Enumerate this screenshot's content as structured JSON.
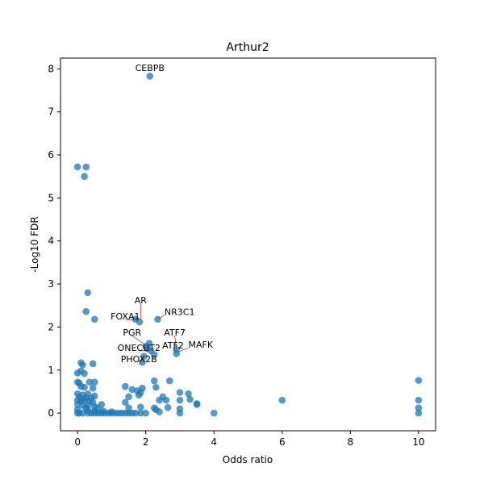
{
  "chart_data": {
    "type": "scatter",
    "title": "Arthur2",
    "xlabel": "Odds ratio",
    "ylabel": "-Log10 FDR",
    "xlim": [
      -0.5,
      10.5
    ],
    "ylim": [
      -0.41,
      8.25
    ],
    "x_ticks": [
      0,
      2,
      4,
      6,
      8,
      10
    ],
    "y_ticks": [
      0,
      1,
      2,
      3,
      4,
      5,
      6,
      7,
      8
    ],
    "x_tick_labels": [
      "0",
      "2",
      "4",
      "6",
      "8",
      "10"
    ],
    "y_tick_labels": [
      "0",
      "1",
      "2",
      "3",
      "4",
      "5",
      "6",
      "7",
      "8"
    ],
    "grid": false,
    "point_color": "#1f77b4",
    "connector_color": "#d62728",
    "points": [
      {
        "x": 2.12,
        "y": 7.83
      },
      {
        "x": 0.0,
        "y": 5.72
      },
      {
        "x": 0.25,
        "y": 5.72
      },
      {
        "x": 0.2,
        "y": 5.5
      },
      {
        "x": 0.3,
        "y": 2.8
      },
      {
        "x": 0.25,
        "y": 2.36
      },
      {
        "x": 0.5,
        "y": 2.18
      },
      {
        "x": 1.7,
        "y": 2.18
      },
      {
        "x": 1.82,
        "y": 2.12
      },
      {
        "x": 2.35,
        "y": 2.18
      },
      {
        "x": 2.1,
        "y": 1.62
      },
      {
        "x": 2.0,
        "y": 1.55
      },
      {
        "x": 2.05,
        "y": 1.5
      },
      {
        "x": 2.15,
        "y": 1.45
      },
      {
        "x": 2.9,
        "y": 1.48
      },
      {
        "x": 2.9,
        "y": 1.38
      },
      {
        "x": 1.95,
        "y": 1.32
      },
      {
        "x": 2.25,
        "y": 1.36
      },
      {
        "x": 1.9,
        "y": 1.18
      },
      {
        "x": 0.1,
        "y": 1.17
      },
      {
        "x": 0.15,
        "y": 1.12
      },
      {
        "x": 0.45,
        "y": 1.15
      },
      {
        "x": 0.0,
        "y": 0.93
      },
      {
        "x": 0.1,
        "y": 0.98
      },
      {
        "x": 0.2,
        "y": 0.92
      },
      {
        "x": 2.25,
        "y": 0.75
      },
      {
        "x": 2.7,
        "y": 0.75
      },
      {
        "x": 10.0,
        "y": 0.76
      },
      {
        "x": 0.0,
        "y": 0.72
      },
      {
        "x": 0.05,
        "y": 0.7
      },
      {
        "x": 0.35,
        "y": 0.72
      },
      {
        "x": 0.5,
        "y": 0.72
      },
      {
        "x": 0.1,
        "y": 0.62
      },
      {
        "x": 0.2,
        "y": 0.6
      },
      {
        "x": 1.4,
        "y": 0.62
      },
      {
        "x": 2.3,
        "y": 0.6
      },
      {
        "x": 0.45,
        "y": 0.58
      },
      {
        "x": 1.6,
        "y": 0.55
      },
      {
        "x": 1.75,
        "y": 0.52
      },
      {
        "x": 1.9,
        "y": 0.58
      },
      {
        "x": 1.85,
        "y": 0.48
      },
      {
        "x": 3.0,
        "y": 0.48
      },
      {
        "x": 3.25,
        "y": 0.45
      },
      {
        "x": 1.8,
        "y": 0.42
      },
      {
        "x": 2.5,
        "y": 0.38
      },
      {
        "x": 1.5,
        "y": 0.38
      },
      {
        "x": 0.0,
        "y": 0.45
      },
      {
        "x": 0.15,
        "y": 0.42
      },
      {
        "x": 0.3,
        "y": 0.45
      },
      {
        "x": 0.5,
        "y": 0.4
      },
      {
        "x": 0.05,
        "y": 0.38
      },
      {
        "x": 0.25,
        "y": 0.35
      },
      {
        "x": 0.4,
        "y": 0.35
      },
      {
        "x": 0.0,
        "y": 0.3
      },
      {
        "x": 0.1,
        "y": 0.28
      },
      {
        "x": 0.2,
        "y": 0.3
      },
      {
        "x": 0.35,
        "y": 0.28
      },
      {
        "x": 0.45,
        "y": 0.25
      },
      {
        "x": 2.4,
        "y": 0.3
      },
      {
        "x": 2.6,
        "y": 0.3
      },
      {
        "x": 3.0,
        "y": 0.3
      },
      {
        "x": 3.3,
        "y": 0.32
      },
      {
        "x": 6.0,
        "y": 0.3
      },
      {
        "x": 10.0,
        "y": 0.3
      },
      {
        "x": 1.4,
        "y": 0.25
      },
      {
        "x": 3.5,
        "y": 0.22
      },
      {
        "x": 3.5,
        "y": 0.2
      },
      {
        "x": 0.0,
        "y": 0.2
      },
      {
        "x": 0.15,
        "y": 0.18
      },
      {
        "x": 0.3,
        "y": 0.18
      },
      {
        "x": 0.5,
        "y": 0.15
      },
      {
        "x": 0.7,
        "y": 0.2
      },
      {
        "x": 0.6,
        "y": 0.12
      },
      {
        "x": 0.25,
        "y": 0.12
      },
      {
        "x": 2.65,
        "y": 0.13
      },
      {
        "x": 2.25,
        "y": 0.12
      },
      {
        "x": 1.85,
        "y": 0.14
      },
      {
        "x": 1.5,
        "y": 0.12
      },
      {
        "x": 3.0,
        "y": 0.1
      },
      {
        "x": 10.0,
        "y": 0.12
      },
      {
        "x": 0.0,
        "y": 0.08
      },
      {
        "x": 0.3,
        "y": 0.07
      },
      {
        "x": 0.5,
        "y": 0.05
      },
      {
        "x": 0.75,
        "y": 0.05
      },
      {
        "x": 1.0,
        "y": 0.03
      },
      {
        "x": 0.0,
        "y": 0.0
      },
      {
        "x": 0.05,
        "y": 0.0
      },
      {
        "x": 0.15,
        "y": 0.0
      },
      {
        "x": 0.3,
        "y": 0.0
      },
      {
        "x": 0.4,
        "y": 0.0
      },
      {
        "x": 0.5,
        "y": 0.0
      },
      {
        "x": 0.6,
        "y": 0.0
      },
      {
        "x": 0.7,
        "y": 0.0
      },
      {
        "x": 0.8,
        "y": 0.0
      },
      {
        "x": 0.9,
        "y": 0.0
      },
      {
        "x": 1.0,
        "y": 0.0
      },
      {
        "x": 1.1,
        "y": 0.0
      },
      {
        "x": 1.2,
        "y": 0.0
      },
      {
        "x": 1.3,
        "y": 0.0
      },
      {
        "x": 1.4,
        "y": 0.0
      },
      {
        "x": 1.5,
        "y": 0.0
      },
      {
        "x": 1.6,
        "y": 0.0
      },
      {
        "x": 1.7,
        "y": 0.0
      },
      {
        "x": 1.85,
        "y": 0.0
      },
      {
        "x": 2.0,
        "y": 0.0
      },
      {
        "x": 2.3,
        "y": 0.08
      },
      {
        "x": 2.4,
        "y": 0.03
      },
      {
        "x": 3.0,
        "y": 0.0
      },
      {
        "x": 4.0,
        "y": 0.0
      },
      {
        "x": 10.0,
        "y": 0.0
      }
    ],
    "annotations": [
      {
        "label": "CEBPB",
        "x": 2.12,
        "y": 7.83,
        "text_x": 2.12,
        "text_y": 7.95,
        "anchor": "middle",
        "connector": false
      },
      {
        "label": "AR",
        "x": 1.85,
        "y": 2.18,
        "text_x": 1.85,
        "text_y": 2.55,
        "anchor": "middle",
        "connector": true
      },
      {
        "label": "NR3C1",
        "x": 2.35,
        "y": 2.18,
        "text_x": 2.55,
        "text_y": 2.28,
        "anchor": "start",
        "connector": true
      },
      {
        "label": "FOXA1",
        "x": 1.75,
        "y": 2.16,
        "text_x": 1.4,
        "text_y": 2.18,
        "anchor": "middle",
        "connector": true
      },
      {
        "label": "PGR",
        "x": 2.05,
        "y": 1.55,
        "text_x": 1.6,
        "text_y": 1.8,
        "anchor": "middle",
        "connector": true
      },
      {
        "label": "ATF7",
        "x": 2.9,
        "y": 1.48,
        "text_x": 2.85,
        "text_y": 1.8,
        "anchor": "middle",
        "connector": true
      },
      {
        "label": "ATF2",
        "x": 2.9,
        "y": 1.42,
        "text_x": 2.8,
        "text_y": 1.5,
        "anchor": "middle",
        "connector": true
      },
      {
        "label": "MAFK",
        "x": 2.9,
        "y": 1.4,
        "text_x": 3.25,
        "text_y": 1.52,
        "anchor": "start",
        "connector": true
      },
      {
        "label": "ONECUT2",
        "x": 2.1,
        "y": 1.45,
        "text_x": 1.8,
        "text_y": 1.45,
        "anchor": "middle",
        "connector": true
      },
      {
        "label": "PHOX2B",
        "x": 1.95,
        "y": 1.32,
        "text_x": 1.8,
        "text_y": 1.18,
        "anchor": "middle",
        "connector": true
      }
    ]
  }
}
